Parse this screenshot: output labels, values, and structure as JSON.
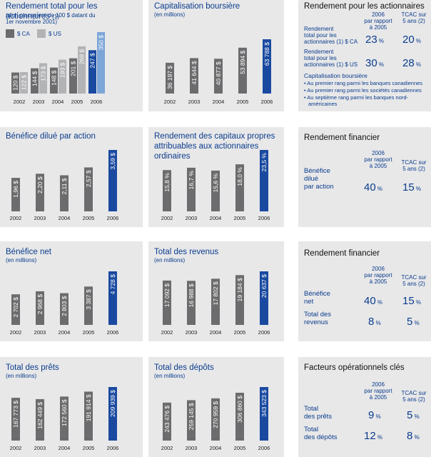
{
  "colors": {
    "gray": "#6c6c6e",
    "lightgray": "#b2b3b5",
    "blue": "#1a4aa0",
    "lightblue": "#7da6d8",
    "panel": "#e8e8e9",
    "text": "#0a3c8c"
  },
  "charts": [
    {
      "id": "rt",
      "title": "Rendement total pour les actionnaires",
      "title_note": "(1)",
      "subtitle": [
        "(d'un placement de 100 $ datant du",
        "1er novembre 2001)"
      ],
      "legend": [
        {
          "label": "$ CA",
          "color": "#6c6c6e"
        },
        {
          "label": "$ US",
          "color": "#b2b3b5"
        }
      ],
      "chart_data": {
        "type": "bar",
        "categories": [
          "2002",
          "2003",
          "2004",
          "2005",
          "2006"
        ],
        "ylim": [
          0,
          350
        ],
        "series": [
          {
            "name": "$ CA",
            "values": [
              120,
              144,
              148,
              201,
              247
            ],
            "labels": [
              "120 $",
              "144 $",
              "148 $",
              "201 $",
              "247 $"
            ]
          },
          {
            "name": "$ US",
            "values": [
              122,
              173,
              193,
              269,
              350
            ],
            "labels": [
              "122 $",
              "173 $",
              "193 $",
              "269 $",
              "350 $"
            ]
          }
        ]
      }
    },
    {
      "id": "cap",
      "title": "Capitalisation boursière",
      "subtitle": [
        "(en millions)"
      ],
      "chart_data": {
        "type": "bar",
        "categories": [
          "2002",
          "2003",
          "2004",
          "2005",
          "2006"
        ],
        "ylim": [
          0,
          63788
        ],
        "values": [
          36197,
          41644,
          40877,
          53894,
          63788
        ],
        "labels": [
          "36 197 $",
          "41 644 $",
          "40 877 $",
          "53 894 $",
          "63 788 $"
        ]
      }
    },
    {
      "id": "bpa",
      "title": "Bénéfice dilué par action",
      "subtitle": [],
      "chart_data": {
        "type": "bar",
        "categories": [
          "2002",
          "2003",
          "2004",
          "2005",
          "2006"
        ],
        "ylim": [
          0,
          3.59
        ],
        "values": [
          1.96,
          2.2,
          2.11,
          2.57,
          3.59
        ],
        "labels": [
          "1,96 $",
          "2,20 $",
          "2,11 $",
          "2,57 $",
          "3,59 $"
        ]
      }
    },
    {
      "id": "rcp",
      "title": "Rendement des capitaux propres attribuables aux actionnaires ordinaires",
      "subtitle": [],
      "chart_data": {
        "type": "bar",
        "categories": [
          "2002",
          "2003",
          "2004",
          "2005",
          "2006"
        ],
        "ylim": [
          0,
          23.5
        ],
        "values": [
          15.8,
          16.7,
          15.6,
          18.0,
          23.5
        ],
        "labels": [
          "15,8 %",
          "16,7 %",
          "15,6 %",
          "18,0 %",
          "23,5 %"
        ]
      }
    },
    {
      "id": "bn",
      "title": "Bénéfice net",
      "subtitle": [
        "(en millions)"
      ],
      "chart_data": {
        "type": "bar",
        "categories": [
          "2002",
          "2003",
          "2004",
          "2005",
          "2006"
        ],
        "ylim": [
          0,
          4728
        ],
        "values": [
          2702,
          2968,
          2803,
          3387,
          4728
        ],
        "labels": [
          "2 702 $",
          "2 968 $",
          "2 803 $",
          "3 387 $",
          "4 728 $"
        ]
      }
    },
    {
      "id": "rev",
      "title": "Total des revenus",
      "subtitle": [
        "(en millions)"
      ],
      "chart_data": {
        "type": "bar",
        "categories": [
          "2002",
          "2003",
          "2004",
          "2005",
          "2006"
        ],
        "ylim": [
          0,
          20637
        ],
        "values": [
          17092,
          16988,
          17802,
          19184,
          20637
        ],
        "labels": [
          "17 092 $",
          "16 988 $",
          "17 802 $",
          "19 184 $",
          "20 637 $"
        ]
      }
    },
    {
      "id": "prets",
      "title": "Total des prêts",
      "subtitle": [
        "(en millions)"
      ],
      "chart_data": {
        "type": "bar",
        "categories": [
          "2002",
          "2003",
          "2004",
          "2005",
          "2006"
        ],
        "ylim": [
          0,
          209939
        ],
        "values": [
          167773,
          162449,
          172560,
          191914,
          209939
        ],
        "labels": [
          "167 773 $",
          "162 449 $",
          "172 560 $",
          "191 914 $",
          "209 939 $"
        ]
      }
    },
    {
      "id": "dep",
      "title": "Total des dépôts",
      "subtitle": [
        "(en millions)"
      ],
      "chart_data": {
        "type": "bar",
        "categories": [
          "2002",
          "2003",
          "2004",
          "2005",
          "2006"
        ],
        "ylim": [
          0,
          343523
        ],
        "values": [
          243476,
          259145,
          270959,
          306860,
          343523
        ],
        "labels": [
          "243 476 $",
          "259 145 $",
          "270 959 $",
          "306 860 $",
          "343 523 $"
        ]
      }
    }
  ],
  "summary": {
    "r1": {
      "title": "Rendement pour les actionnaires",
      "col1": [
        "2006",
        "par rapport",
        "à 2005"
      ],
      "col2": [
        "TCAC sur",
        "5 ans (2)"
      ],
      "rows": [
        {
          "label": [
            "Rendement",
            "total pour les",
            "actionnaires (1) $ CA"
          ],
          "v1": "23",
          "v2": "20"
        },
        {
          "label": [
            "Rendement",
            "total pour les",
            "actionnaires (1) $ US"
          ],
          "v1": "30",
          "v2": "28"
        }
      ],
      "pct": "%",
      "cap_title": "Capitalisation boursière",
      "bullets": [
        "Au premier rang parmi les banques canadiennes",
        "Au premier rang parmi les sociétés canadiennes",
        "Au septième rang parmi les banques nord-",
        "américaines"
      ]
    },
    "r2": {
      "title": "Rendement financier",
      "col1": [
        "2006",
        "par rapport",
        "à 2005"
      ],
      "col2": [
        "TCAC sur",
        "5 ans (2)"
      ],
      "rows": [
        {
          "label": [
            "Bénéfice",
            "dilué",
            "par action"
          ],
          "v1": "40",
          "v2": "15"
        }
      ],
      "pct": "%"
    },
    "r3": {
      "title": "Rendement financier",
      "col1": [
        "2006",
        "par rapport",
        "à 2005"
      ],
      "col2": [
        "TCAC sur",
        "5 ans (2)"
      ],
      "rows": [
        {
          "label": [
            "Bénéfice",
            "net"
          ],
          "v1": "40",
          "v2": "15"
        },
        {
          "label": [
            "Total des",
            "revenus"
          ],
          "v1": "8",
          "v2": "5"
        }
      ],
      "pct": "%"
    },
    "r4": {
      "title": "Facteurs opérationnels clés",
      "col1": [
        "2006",
        "par rapport",
        "à 2005"
      ],
      "col2": [
        "TCAC sur",
        "5 ans (2)"
      ],
      "rows": [
        {
          "label": [
            "Total",
            "des prêts"
          ],
          "v1": "9",
          "v2": "5"
        },
        {
          "label": [
            "Total",
            "des dépôts"
          ],
          "v1": "12",
          "v2": "8"
        }
      ],
      "pct": "%"
    }
  }
}
